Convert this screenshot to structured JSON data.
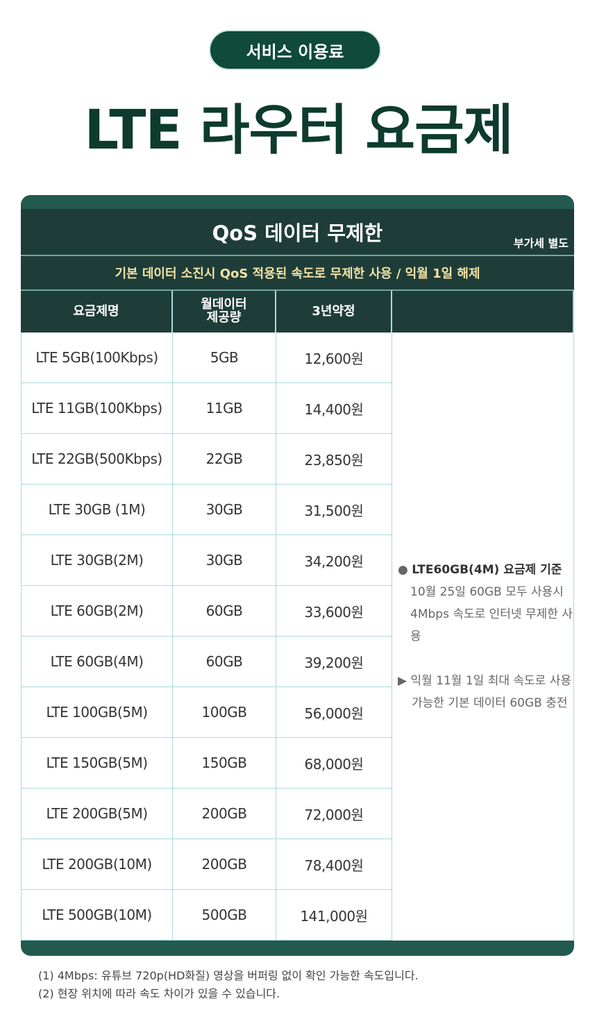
{
  "badge": "서비스 이용료",
  "title": "LTE 라우터 요금제",
  "table": {
    "header": "QoS 데이터 무제한",
    "vat": "부가세 별도",
    "subheader": "기본 데이터 소진시 QoS 적용된 속도로 무제한 사용 / 익월 1일 해제",
    "columns": [
      "요금제명",
      "월데이터\n제공량",
      "3년약정",
      ""
    ],
    "rows": [
      [
        "LTE 5GB(100Kbps)",
        "5GB",
        "12,600원"
      ],
      [
        "LTE 11GB(100Kbps)",
        "11GB",
        "14,400원"
      ],
      [
        "LTE 22GB(500Kbps)",
        "22GB",
        "23,850원"
      ],
      [
        "LTE 30GB (1M)",
        "30GB",
        "31,500원"
      ],
      [
        "LTE 30GB(2M)",
        "30GB",
        "34,200원"
      ],
      [
        "LTE 60GB(2M)",
        "60GB",
        "33,600원"
      ],
      [
        "LTE 60GB(4M)",
        "60GB",
        "39,200원"
      ],
      [
        "LTE 100GB(5M)",
        "100GB",
        "56,000원"
      ],
      [
        "LTE 150GB(5M)",
        "150GB",
        "68,000원"
      ],
      [
        "LTE 200GB(5M)",
        "200GB",
        "72,000원"
      ],
      [
        "LTE 200GB(10M)",
        "200GB",
        "78,400원"
      ],
      [
        "LTE 500GB(10M)",
        "500GB",
        "141,000원"
      ]
    ],
    "note": {
      "bullet1_title": "LTE60GB(4M) 요금제 기준",
      "bullet1_body": "10월 25일 60GB 모두 사용시 4Mbps 속도로 인터넷 무제한 사용",
      "bullet2": "익월 11월 1일 최대 속도로 사용 가능한 기본 데이터 60GB 충전"
    }
  },
  "footnotes": [
    "(1) 4Mbps: 유튜브 720p(HD화질) 영상을 버퍼링 없이 확인 가능한 속도입니다.",
    "(2) 현장 위치에 따라 속도 차이가 있을 수 있습니다."
  ],
  "colors": {
    "dark": "#1f3d38",
    "accent": "#225a50",
    "subheader_text": "#f3e2a6",
    "border": "#a8dcd8"
  }
}
